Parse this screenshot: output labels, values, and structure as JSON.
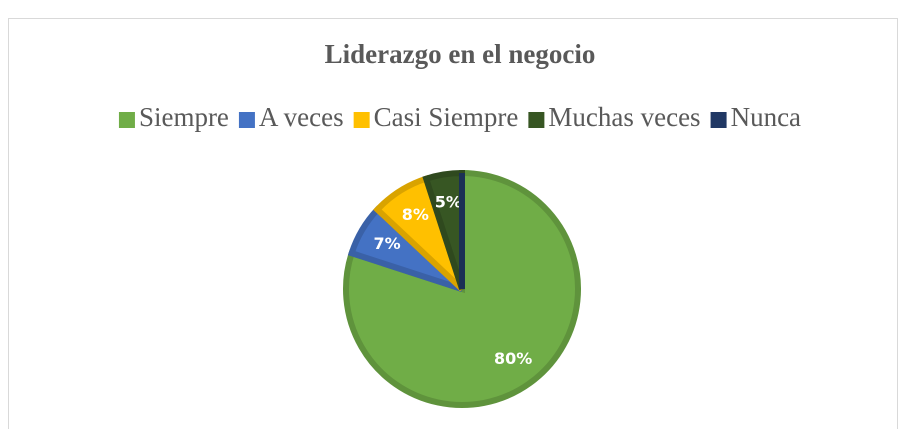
{
  "chart_data": {
    "type": "pie",
    "title": "Liderazgo en el negocio",
    "categories": [
      "Siempre",
      "A veces",
      "Casi Siempre",
      "Muchas veces",
      "Nunca"
    ],
    "values": [
      80,
      7,
      8,
      5,
      0
    ],
    "value_labels": [
      "80%",
      "7%",
      "8%",
      "5%",
      null
    ],
    "colors": [
      "#70ad47",
      "#4472c4",
      "#ffc000",
      "#375623",
      "#203864"
    ],
    "legend": "top"
  }
}
